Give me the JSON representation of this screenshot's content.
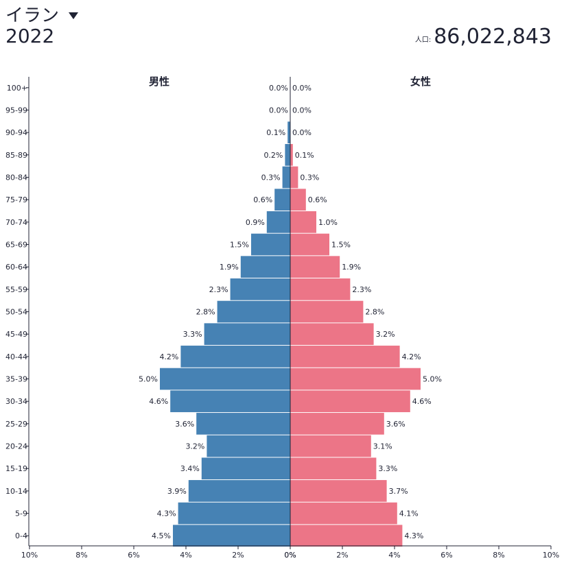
{
  "header": {
    "country": "イラン",
    "year": "2022",
    "population_label": "人口:",
    "population_value": "86,022,843"
  },
  "colors": {
    "male": "#4682b4",
    "female": "#ec7587"
  },
  "chart_data": {
    "type": "bar",
    "orientation": "horizontal",
    "subtype": "population-pyramid",
    "male_label": "男性",
    "female_label": "女性",
    "categories": [
      "100+",
      "95-99",
      "90-94",
      "85-89",
      "80-84",
      "75-79",
      "70-74",
      "65-69",
      "60-64",
      "55-59",
      "50-54",
      "45-49",
      "40-44",
      "35-39",
      "30-34",
      "25-29",
      "20-24",
      "15-19",
      "10-14",
      "5-9",
      "0-4"
    ],
    "series": [
      {
        "name": "男性",
        "values": [
          0.0,
          0.0,
          0.1,
          0.2,
          0.3,
          0.6,
          0.9,
          1.5,
          1.9,
          2.3,
          2.8,
          3.3,
          4.2,
          5.0,
          4.6,
          3.6,
          3.2,
          3.4,
          3.9,
          4.3,
          4.5
        ],
        "labels": [
          "0.0%",
          "0.0%",
          "0.1%",
          "0.2%",
          "0.3%",
          "0.6%",
          "0.9%",
          "1.5%",
          "1.9%",
          "2.3%",
          "2.8%",
          "3.3%",
          "4.2%",
          "5.0%",
          "4.6%",
          "3.6%",
          "3.2%",
          "3.4%",
          "3.9%",
          "4.3%",
          "4.5%"
        ]
      },
      {
        "name": "女性",
        "values": [
          0.0,
          0.0,
          0.0,
          0.1,
          0.3,
          0.6,
          1.0,
          1.5,
          1.9,
          2.3,
          2.8,
          3.2,
          4.2,
          5.0,
          4.6,
          3.6,
          3.1,
          3.3,
          3.7,
          4.1,
          4.3
        ],
        "labels": [
          "0.0%",
          "0.0%",
          "0.0%",
          "0.1%",
          "0.3%",
          "0.6%",
          "1.0%",
          "1.5%",
          "1.9%",
          "2.3%",
          "2.8%",
          "3.2%",
          "4.2%",
          "5.0%",
          "4.6%",
          "3.6%",
          "3.1%",
          "3.3%",
          "3.7%",
          "4.1%",
          "4.3%"
        ]
      }
    ],
    "x_ticks": [
      "10%",
      "8%",
      "6%",
      "4%",
      "2%",
      "0%",
      "0%",
      "2%",
      "4%",
      "6%",
      "8%",
      "10%"
    ],
    "xlim": [
      -10,
      10
    ]
  }
}
